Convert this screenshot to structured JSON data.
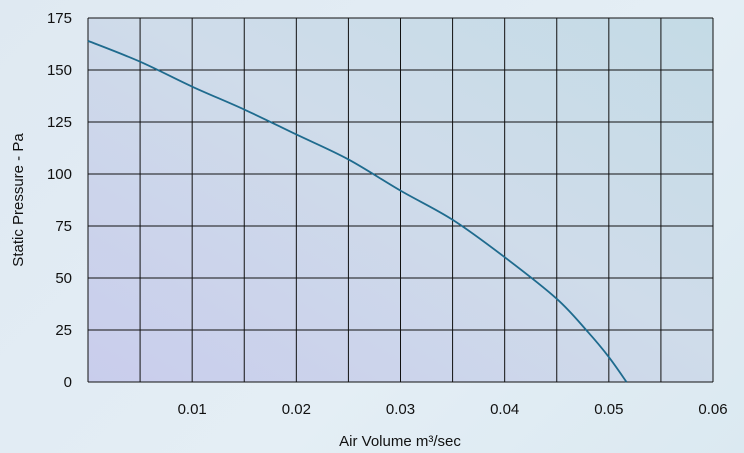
{
  "chart_data": {
    "type": "line",
    "title": "",
    "xlabel": "Air Volume m³/sec",
    "ylabel": "Static Pressure - Pa",
    "xlim": [
      0,
      0.06
    ],
    "ylim": [
      0,
      175
    ],
    "x_ticks": [
      "0.01",
      "0.02",
      "0.03",
      "0.04",
      "0.05",
      "0.06"
    ],
    "x_tick_values": [
      0.01,
      0.02,
      0.03,
      0.04,
      0.05,
      0.06
    ],
    "y_ticks": [
      "0",
      "25",
      "50",
      "75",
      "100",
      "125",
      "150",
      "175"
    ],
    "y_tick_values": [
      0,
      25,
      50,
      75,
      100,
      125,
      150,
      175
    ],
    "x_grid_step": 0.005,
    "grid": true,
    "series": [
      {
        "x": [
          0,
          0.005,
          0.01,
          0.015,
          0.02,
          0.025,
          0.03,
          0.035,
          0.04,
          0.045,
          0.048,
          0.05,
          0.0517
        ],
        "y": [
          164,
          154,
          142,
          131,
          119,
          107,
          92,
          78,
          60,
          40,
          24,
          12,
          0
        ]
      }
    ],
    "colors": {
      "curve": "#1f6b8e",
      "grid": "#111111"
    }
  }
}
